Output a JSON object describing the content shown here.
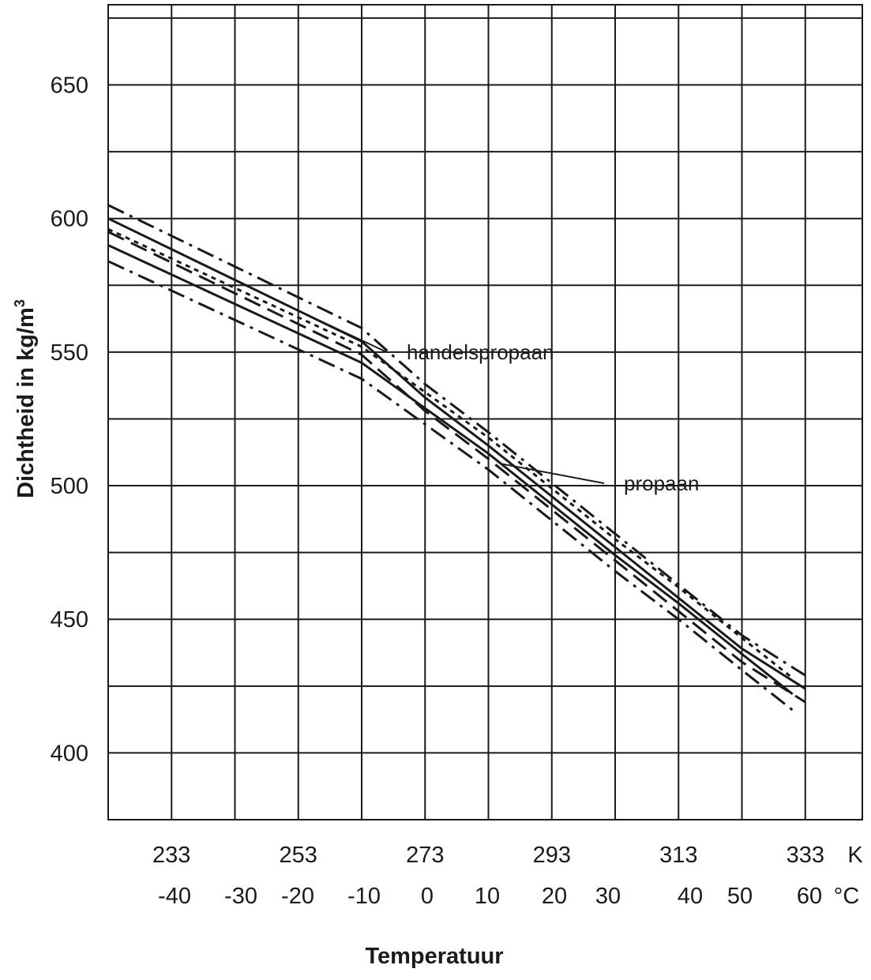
{
  "chart_data": {
    "type": "line",
    "xlabel": "Temperatuur",
    "ylabel": "Dichtheid in kg/m",
    "ylabel_superscript": "3",
    "xlim": [
      223,
      342
    ],
    "ylim": [
      375,
      680
    ],
    "grid": true,
    "y_ticks": [
      "400",
      "450",
      "500",
      "550",
      "600",
      "650"
    ],
    "x_ticks_kelvin": {
      "unit": "K",
      "labels": [
        "233",
        "253",
        "273",
        "293",
        "313",
        "333"
      ]
    },
    "x_ticks_celsius": {
      "unit": "°C",
      "labels": [
        "-40",
        "-30",
        "-20",
        "-10",
        "0",
        "10",
        "20",
        "30",
        "40",
        "50",
        "60"
      ]
    },
    "series": [
      {
        "name": "handelspropaan",
        "x": [
          223,
          243,
          263,
          273,
          283,
          293,
          303,
          313,
          323,
          333
        ],
        "y": [
          600,
          577,
          554,
          533,
          515,
          496,
          477,
          458,
          439,
          424
        ]
      },
      {
        "name": "propaan",
        "x": [
          223,
          243,
          263,
          273,
          283,
          293,
          303,
          313,
          323,
          331
        ],
        "y": [
          590,
          568,
          546,
          529,
          512,
          493,
          474,
          456,
          437,
          422
        ]
      }
    ],
    "annotations": [
      {
        "text": "handelspropaan",
        "points_to": "handelspropaan",
        "at_x": 252
      },
      {
        "text": "propaan",
        "points_to": "propaan",
        "at_x": 285
      }
    ]
  }
}
